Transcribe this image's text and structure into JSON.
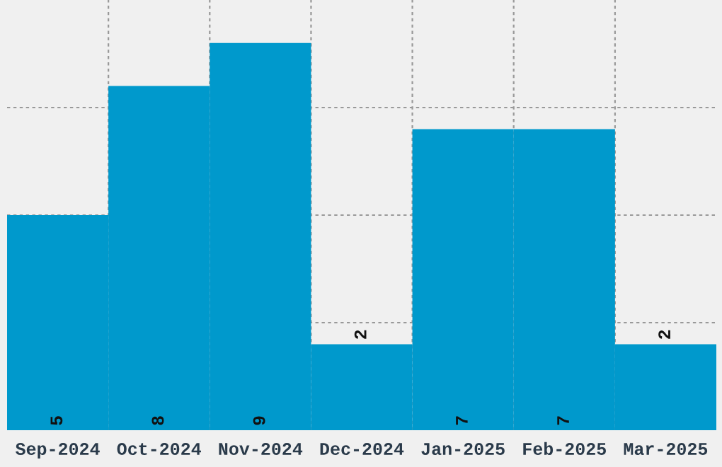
{
  "chart_data": {
    "type": "bar",
    "categories": [
      "Sep-2024",
      "Oct-2024",
      "Nov-2024",
      "Dec-2024",
      "Jan-2025",
      "Feb-2025",
      "Mar-2025"
    ],
    "values": [
      5,
      8,
      9,
      2,
      7,
      7,
      2
    ],
    "color": "#0099cc",
    "ylim": [
      0,
      10
    ],
    "yticks": [
      {
        "value": 2.5,
        "label": null
      },
      {
        "value": 5,
        "label": null
      },
      {
        "value": 7.5,
        "label": null
      }
    ],
    "grid": true,
    "data_labels": true,
    "tick_labels": "x"
  }
}
